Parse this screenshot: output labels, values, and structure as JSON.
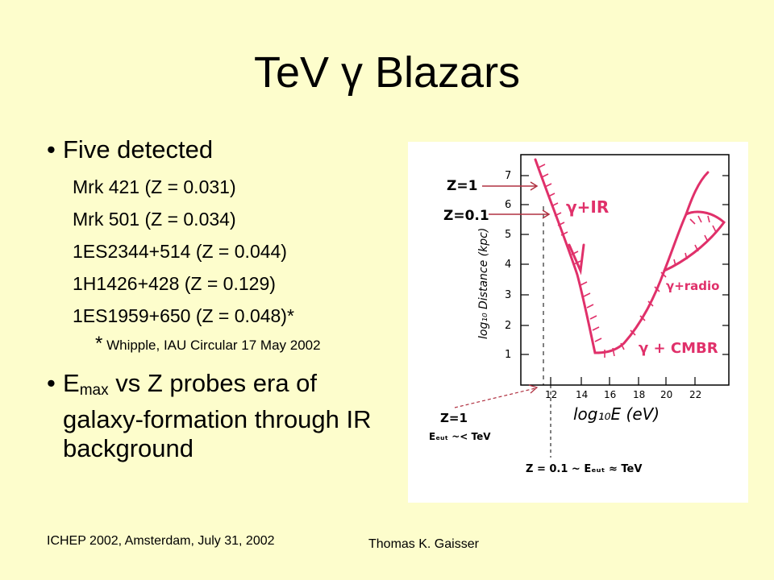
{
  "slide": {
    "title": "TeV γ Blazars",
    "bullet1": "Five detected",
    "sources": [
      "Mrk 421 (Z = 0.031)",
      "Mrk 501 (Z = 0.034)",
      "1ES2344+514 (Z = 0.044)",
      "1H1426+428 (Z = 0.129)",
      "1ES1959+650 (Z = 0.048)*"
    ],
    "footnote_star": "*",
    "footnote": "Whipple, IAU Circular 17 May 2002",
    "bullet2_pre": "E",
    "bullet2_sub": "max",
    "bullet2_post": " vs Z probes era of galaxy-formation through IR background",
    "footer_left": "ICHEP 2002, Amsterdam, July 31, 2002",
    "footer_right": "Thomas K. Gaisser"
  },
  "figure": {
    "z1_label": "Z=1",
    "z01_label": "Z=0.1",
    "ylabel": "log₁₀ Distance (kpc)",
    "xlabel": "log₁₀E (eV)",
    "y_ticks": [
      "1",
      "2",
      "3",
      "4",
      "5",
      "6",
      "7"
    ],
    "x_ticks": [
      "12",
      "14",
      "16",
      "18",
      "20",
      "22"
    ],
    "curve_ir": "γ+IR",
    "curve_radio": "γ+radio",
    "curve_cmbr": "γ + CMBR",
    "note_z1_a": "Z=1",
    "note_z1_b": "Eₑᵤₜ ~< TeV",
    "note_z01": "Z = 0.1 ~ Eₑᵤₜ ≈ TeV",
    "colors": {
      "ink": "#000000",
      "curve": "#e0306a",
      "arrow": "#b03040"
    }
  }
}
